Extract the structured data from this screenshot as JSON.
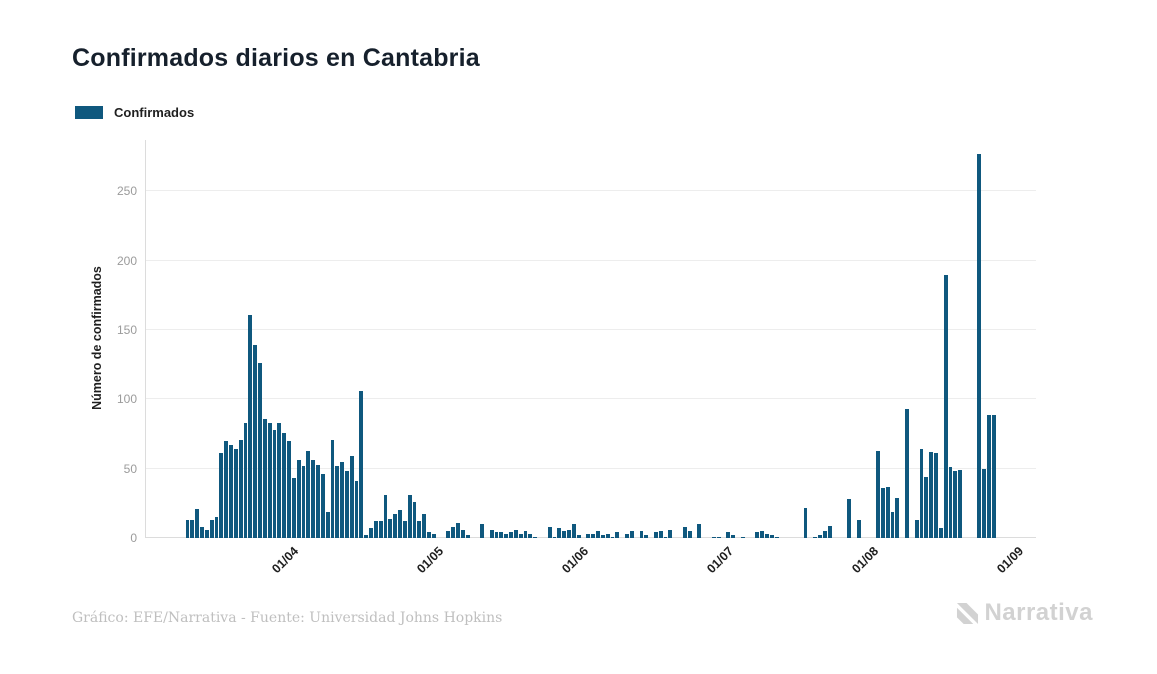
{
  "header": {
    "title": "Confirmados diarios en Cantabria"
  },
  "legend": {
    "label": "Confirmados"
  },
  "footer": {
    "credit": "Gráfico: EFE/Narrativa - Fuente: Universidad Johns Hopkins",
    "logo_text": "Narrativa",
    "logo_icon": "narrativa-n-mark"
  },
  "colors": {
    "bar": "#0f587e",
    "title": "#16202c",
    "text_dark": "#1f1f1f",
    "grid": "#ededed",
    "baseline": "#dcdcdc",
    "y_tick": "#9b9b9b",
    "footer": "#bfbfbf",
    "logo": "#d2d2d2"
  },
  "chart_data": {
    "type": "bar",
    "title": "Confirmados diarios en Cantabria",
    "xlabel": "",
    "ylabel": "Número de confirmados",
    "series_name": "Confirmados",
    "legend_position": "top-left",
    "grid": "horizontal",
    "ylim": [
      0,
      287
    ],
    "yticks": [
      0,
      50,
      100,
      150,
      200,
      250
    ],
    "xticks": [
      {
        "label": "01/04",
        "pos": 0.163
      },
      {
        "label": "01/05",
        "pos": 0.326
      },
      {
        "label": "01/06",
        "pos": 0.489
      },
      {
        "label": "01/07",
        "pos": 0.652
      },
      {
        "label": "01/08",
        "pos": 0.815
      },
      {
        "label": "01/09",
        "pos": 0.978
      }
    ],
    "values": [
      13,
      13,
      21,
      8,
      6,
      13,
      15,
      61,
      70,
      67,
      64,
      71,
      83,
      161,
      139,
      126,
      86,
      83,
      78,
      83,
      76,
      70,
      43,
      56,
      52,
      63,
      56,
      53,
      46,
      19,
      71,
      52,
      55,
      48,
      59,
      41,
      106,
      2,
      7,
      12,
      12,
      31,
      14,
      17,
      20,
      12,
      31,
      26,
      12,
      17,
      4,
      3,
      0,
      0,
      5,
      8,
      11,
      6,
      2,
      0,
      0,
      10,
      0,
      6,
      4,
      4,
      3,
      4,
      6,
      3,
      5,
      3,
      1,
      0,
      0,
      8,
      1,
      7,
      5,
      6,
      10,
      2,
      0,
      3,
      3,
      5,
      2,
      3,
      1,
      4,
      0,
      3,
      5,
      0,
      5,
      2,
      0,
      4,
      5,
      1,
      6,
      0,
      0,
      8,
      5,
      0,
      10,
      0,
      0,
      1,
      1,
      0,
      4,
      2,
      0,
      1,
      0,
      0,
      4,
      5,
      3,
      2,
      1,
      0,
      0,
      0,
      0,
      0,
      22,
      0,
      1,
      2,
      5,
      9,
      0,
      0,
      0,
      28,
      0,
      13,
      0,
      0,
      0,
      63,
      36,
      37,
      19,
      29,
      0,
      93,
      0,
      13,
      64,
      44,
      62,
      61,
      7,
      190,
      51,
      48,
      49,
      0,
      0,
      0,
      277,
      50,
      89,
      89
    ]
  }
}
